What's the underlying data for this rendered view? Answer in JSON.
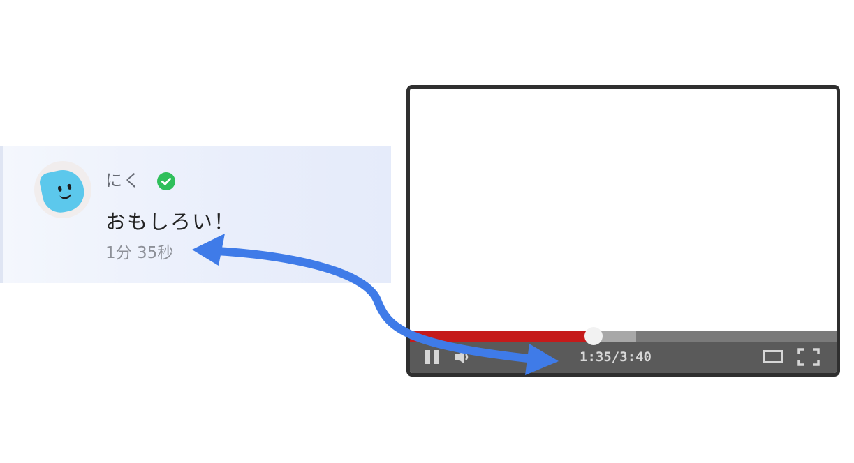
{
  "comment": {
    "username": "にく",
    "text": "おもしろい！",
    "timestamp": "1分 35秒",
    "avatar_icon": "blob-smiley-avatar",
    "badge_icon": "verified-check-icon",
    "badge_color": "#2fbf5b"
  },
  "player": {
    "time_display": "1:35/3:40",
    "current_time": "1:35",
    "duration": "3:40",
    "progress_fraction": 0.43,
    "buffered_fraction": 0.53,
    "progress_color": "#c51a1a",
    "controls": {
      "pause_icon": "pause-icon",
      "volume_icon": "speaker-icon",
      "theater_icon": "theater-mode-icon",
      "fullscreen_icon": "fullscreen-icon"
    }
  },
  "arrow": {
    "color": "#3f7be8",
    "style": "double-headed curved arrow linking comment timestamp to player time"
  }
}
